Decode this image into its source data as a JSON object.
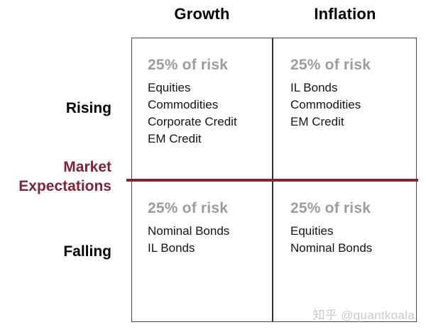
{
  "colors": {
    "maroon": "#7f2636",
    "risk_gray": "#9c9c9c",
    "border_gray": "#4a4a4a",
    "text_black": "#141414",
    "watermark_gray": "#cbcbcb"
  },
  "matrix": {
    "columns": [
      {
        "label": "Growth"
      },
      {
        "label": "Inflation"
      }
    ],
    "rows": [
      {
        "label": "Rising"
      },
      {
        "label": "Falling"
      }
    ],
    "axis_label": {
      "line1": "Market",
      "line2": "Expectations"
    },
    "quadrants": [
      {
        "name": "rising-growth",
        "risk_label": "25% of risk",
        "assets": [
          "Equities",
          "Commodities",
          "Corporate Credit",
          "EM Credit"
        ]
      },
      {
        "name": "rising-inflation",
        "risk_label": "25% of risk",
        "assets": [
          "IL Bonds",
          "Commodities",
          "EM Credit"
        ]
      },
      {
        "name": "falling-growth",
        "risk_label": "25% of risk",
        "assets": [
          "Nominal Bonds",
          "IL Bonds"
        ]
      },
      {
        "name": "falling-inflation",
        "risk_label": "25% of risk",
        "assets": [
          "Equities",
          "Nominal Bonds"
        ]
      }
    ],
    "watermark": "知乎 @quantkoala"
  }
}
